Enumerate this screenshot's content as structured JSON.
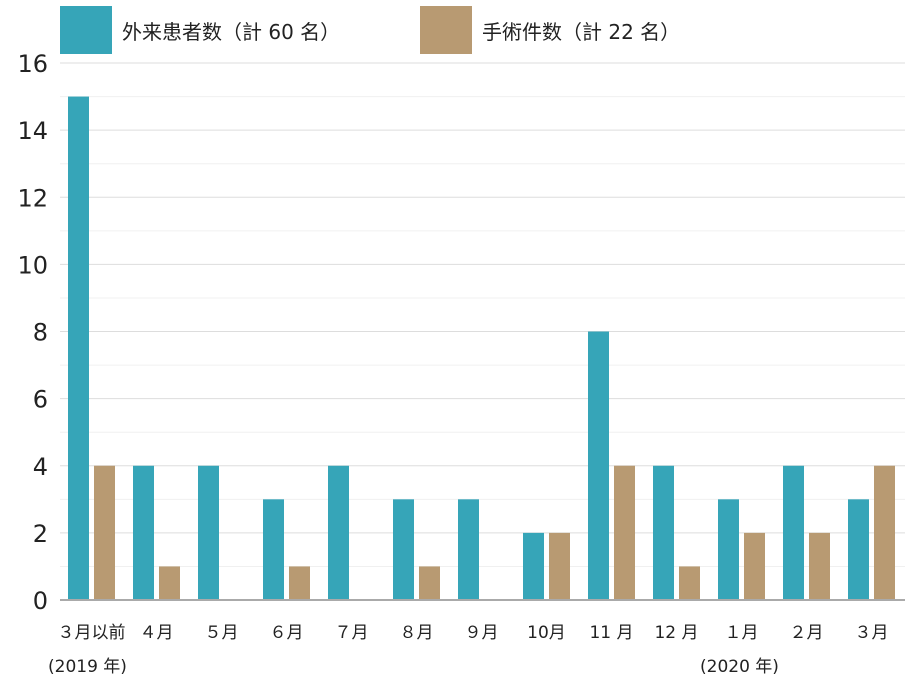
{
  "chart_data": {
    "type": "bar",
    "categories": [
      "３月以前",
      "４月",
      "５月",
      "６月",
      "７月",
      "８月",
      "９月",
      "10月",
      "11 月",
      "12 月",
      "１月",
      "２月",
      "３月"
    ],
    "series": [
      {
        "name": "外来患者数（計 60 名）",
        "color": "#36a5b8",
        "values": [
          15,
          4,
          4,
          3,
          4,
          3,
          3,
          2,
          8,
          4,
          3,
          4,
          3
        ]
      },
      {
        "name": "手術件数（計 22 名）",
        "color": "#b89a72",
        "values": [
          4,
          1,
          0,
          1,
          0,
          1,
          0,
          2,
          4,
          1,
          2,
          2,
          4
        ]
      }
    ],
    "ylim": [
      0,
      16
    ],
    "yticks": [
      "0",
      "2",
      "4",
      "6",
      "8",
      "10",
      "12",
      "14",
      "16"
    ],
    "grid": true,
    "legend_position": "top-left",
    "title": "",
    "xlabel": "",
    "ylabel": ""
  },
  "notes": {
    "year_start": "(2019 年)",
    "year_end": "(2020 年)"
  }
}
